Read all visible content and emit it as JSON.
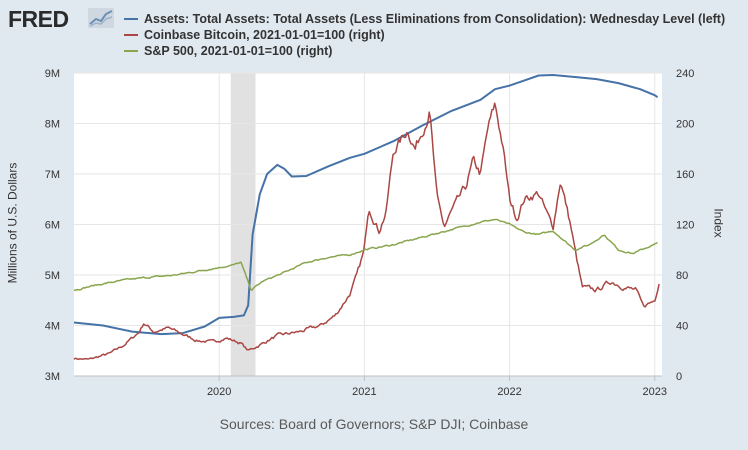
{
  "header": {
    "logo_text": "FRED",
    "logo_icon": "chart-trend-icon"
  },
  "legend": [
    {
      "label": "Assets: Total Assets: Total Assets (Less Eliminations from Consolidation): Wednesday Level (left)",
      "color": "#4572a7"
    },
    {
      "label": "Coinbase Bitcoin, 2021-01-01=100 (right)",
      "color": "#aa4643"
    },
    {
      "label": "S&P 500, 2021-01-01=100 (right)",
      "color": "#89a54e"
    }
  ],
  "footer": {
    "source": "Sources: Board of Governors; S&P DJI; Coinbase"
  },
  "chart_data": {
    "type": "line",
    "xlabel": "",
    "ylabel_left": "Millions of U.S. Dollars",
    "ylabel_right": "Index",
    "xlim": [
      2019.0,
      2023.05
    ],
    "ylim_left": [
      3000000,
      9000000
    ],
    "ylim_right": [
      0,
      240
    ],
    "x_ticks": [
      2020,
      2021,
      2022,
      2023
    ],
    "x_tick_labels": [
      "2020",
      "2021",
      "2022",
      "2023"
    ],
    "y_left_ticks": [
      3000000,
      4000000,
      5000000,
      6000000,
      7000000,
      8000000,
      9000000
    ],
    "y_left_tick_labels": [
      "3M",
      "4M",
      "5M",
      "6M",
      "7M",
      "8M",
      "9M"
    ],
    "y_right_ticks": [
      0,
      40,
      80,
      120,
      160,
      200,
      240
    ],
    "y_right_tick_labels": [
      "0",
      "40",
      "80",
      "120",
      "160",
      "200",
      "240"
    ],
    "recession": {
      "start": 2020.08,
      "end": 2020.25
    },
    "grid": true,
    "series": [
      {
        "name": "Assets: Total Assets: Total Assets (Less Eliminations from Consolidation): Wednesday Level (left)",
        "axis": "left",
        "color": "#4572a7",
        "x": [
          2019.0,
          2019.2,
          2019.4,
          2019.6,
          2019.75,
          2019.9,
          2020.0,
          2020.1,
          2020.17,
          2020.2,
          2020.23,
          2020.28,
          2020.33,
          2020.4,
          2020.45,
          2020.5,
          2020.6,
          2020.75,
          2020.9,
          2021.0,
          2021.2,
          2021.4,
          2021.6,
          2021.8,
          2021.9,
          2022.0,
          2022.1,
          2022.2,
          2022.3,
          2022.45,
          2022.6,
          2022.75,
          2022.9,
          2023.0,
          2023.02
        ],
        "y": [
          4060000,
          4000000,
          3880000,
          3830000,
          3850000,
          3980000,
          4150000,
          4170000,
          4200000,
          4400000,
          5800000,
          6600000,
          7000000,
          7180000,
          7100000,
          6950000,
          6960000,
          7150000,
          7320000,
          7400000,
          7650000,
          7960000,
          8250000,
          8470000,
          8680000,
          8750000,
          8850000,
          8950000,
          8960000,
          8920000,
          8880000,
          8800000,
          8680000,
          8560000,
          8520000
        ]
      },
      {
        "name": "Coinbase Bitcoin, 2021-01-01=100 (right)",
        "axis": "right",
        "color": "#aa4643",
        "x": [
          2019.0,
          2019.1,
          2019.25,
          2019.35,
          2019.45,
          2019.48,
          2019.55,
          2019.65,
          2019.75,
          2019.85,
          2019.95,
          2020.05,
          2020.15,
          2020.2,
          2020.27,
          2020.4,
          2020.55,
          2020.7,
          2020.8,
          2020.9,
          2020.95,
          2021.0,
          2021.03,
          2021.1,
          2021.15,
          2021.2,
          2021.3,
          2021.35,
          2021.45,
          2021.5,
          2021.55,
          2021.6,
          2021.7,
          2021.75,
          2021.8,
          2021.85,
          2021.9,
          2021.95,
          2022.0,
          2022.05,
          2022.1,
          2022.2,
          2022.25,
          2022.3,
          2022.35,
          2022.42,
          2022.45,
          2022.5,
          2022.6,
          2022.7,
          2022.8,
          2022.87,
          2022.92,
          2023.0,
          2023.03
        ],
        "y": [
          14,
          13,
          18,
          25,
          35,
          42,
          35,
          38,
          33,
          28,
          27,
          30,
          26,
          20,
          24,
          32,
          35,
          40,
          48,
          65,
          80,
          100,
          135,
          115,
          130,
          178,
          195,
          180,
          210,
          140,
          118,
          130,
          150,
          170,
          160,
          195,
          215,
          185,
          140,
          125,
          140,
          145,
          130,
          118,
          155,
          120,
          100,
          70,
          68,
          75,
          70,
          68,
          55,
          60,
          75
        ]
      },
      {
        "name": "S&P 500, 2021-01-01=100 (right)",
        "axis": "right",
        "color": "#89a54e",
        "x": [
          2019.0,
          2019.15,
          2019.35,
          2019.5,
          2019.7,
          2019.9,
          2020.1,
          2020.15,
          2020.22,
          2020.3,
          2020.45,
          2020.6,
          2020.75,
          2020.9,
          2021.0,
          2021.2,
          2021.4,
          2021.6,
          2021.8,
          2021.9,
          2022.0,
          2022.1,
          2022.2,
          2022.3,
          2022.45,
          2022.55,
          2022.65,
          2022.75,
          2022.85,
          2022.95,
          2023.02
        ],
        "y": [
          68,
          72,
          76,
          78,
          80,
          84,
          88,
          90,
          68,
          75,
          82,
          90,
          94,
          96,
          100,
          104,
          110,
          116,
          122,
          124,
          120,
          114,
          112,
          115,
          100,
          104,
          112,
          100,
          97,
          102,
          105
        ]
      }
    ]
  }
}
